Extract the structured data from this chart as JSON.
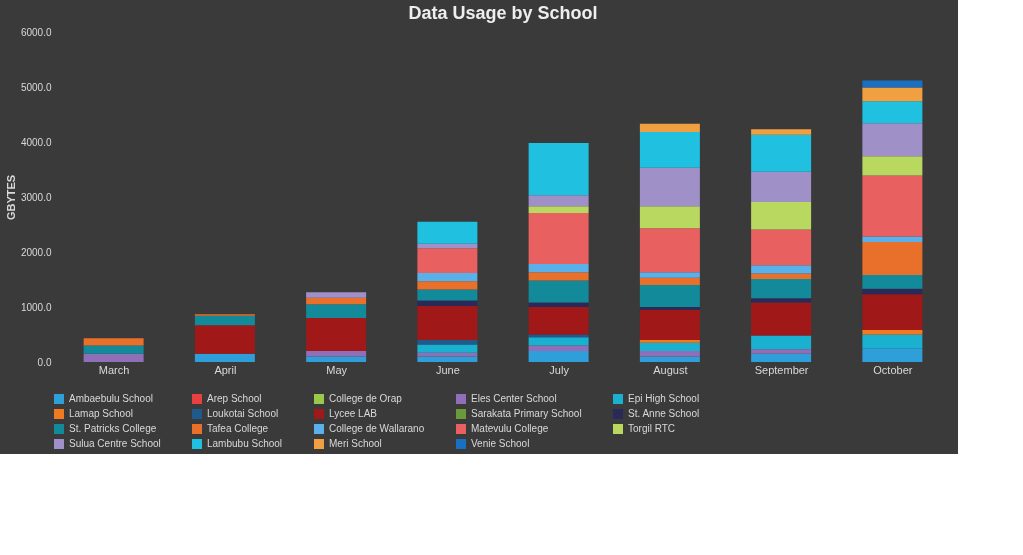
{
  "chart_data": {
    "type": "bar",
    "stacked": true,
    "title": "Data Usage by School",
    "ylabel": "GBYTES",
    "categories": [
      "March",
      "April",
      "May",
      "June",
      "July",
      "August",
      "September",
      "October"
    ],
    "ylim": [
      0,
      6000
    ],
    "yticks": [
      {
        "value": 0,
        "label": "0.0"
      },
      {
        "value": 1000,
        "label": "1000.0"
      },
      {
        "value": 2000,
        "label": "2000.0"
      },
      {
        "value": 3000,
        "label": "3000.0"
      },
      {
        "value": 4000,
        "label": "4000.0"
      },
      {
        "value": 5000,
        "label": "5000.0"
      },
      {
        "value": 6000,
        "label": "6000.0"
      }
    ],
    "grid": false,
    "legend": "bottom",
    "series": [
      {
        "name": "Ambaebulu School",
        "color": "#2e9fd8",
        "values": [
          0,
          150,
          100,
          100,
          200,
          100,
          150,
          250
        ]
      },
      {
        "name": "Arep School",
        "color": "#e84040",
        "values": [
          0,
          0,
          0,
          0,
          0,
          0,
          0,
          0
        ]
      },
      {
        "name": "College de Orap",
        "color": "#9bc84a",
        "values": [
          0,
          0,
          0,
          0,
          0,
          0,
          0,
          0
        ]
      },
      {
        "name": "Eles Center School",
        "color": "#8e6fb8",
        "values": [
          150,
          0,
          100,
          70,
          100,
          100,
          80,
          0
        ]
      },
      {
        "name": "Epi High School",
        "color": "#1ab0d0",
        "values": [
          0,
          0,
          0,
          150,
          150,
          150,
          250,
          250
        ]
      },
      {
        "name": "Lamap School",
        "color": "#f07a20",
        "values": [
          0,
          0,
          0,
          0,
          0,
          50,
          0,
          80
        ]
      },
      {
        "name": "Loukotai School",
        "color": "#1e5a8c",
        "values": [
          0,
          0,
          0,
          80,
          50,
          0,
          0,
          0
        ]
      },
      {
        "name": "Lycee LAB",
        "color": "#a01818",
        "values": [
          0,
          520,
          600,
          620,
          500,
          550,
          600,
          650
        ]
      },
      {
        "name": "Sarakata Primary School",
        "color": "#6a9a3a",
        "values": [
          0,
          0,
          0,
          0,
          0,
          0,
          0,
          0
        ]
      },
      {
        "name": "St. Anne School",
        "color": "#2a2a5a",
        "values": [
          0,
          0,
          0,
          100,
          80,
          50,
          80,
          100
        ]
      },
      {
        "name": "St. Patricks College",
        "color": "#138a9a",
        "values": [
          150,
          170,
          250,
          200,
          400,
          400,
          350,
          250
        ]
      },
      {
        "name": "Tafea College",
        "color": "#e8702a",
        "values": [
          130,
          30,
          120,
          150,
          150,
          130,
          100,
          600
        ]
      },
      {
        "name": "College de Wallarano",
        "color": "#5ab0e8",
        "values": [
          0,
          0,
          0,
          150,
          150,
          100,
          150,
          100
        ]
      },
      {
        "name": "Matevulu College",
        "color": "#e86060",
        "values": [
          0,
          0,
          0,
          450,
          930,
          800,
          650,
          1110
        ]
      },
      {
        "name": "Torgil RTC",
        "color": "#b8d860",
        "values": [
          0,
          0,
          0,
          0,
          120,
          400,
          500,
          350
        ]
      },
      {
        "name": "Sulua Centre School",
        "color": "#a090c8",
        "values": [
          0,
          0,
          100,
          80,
          200,
          700,
          550,
          600
        ]
      },
      {
        "name": "Lambubu School",
        "color": "#20c0e0",
        "values": [
          0,
          0,
          0,
          400,
          950,
          650,
          670,
          400
        ]
      },
      {
        "name": "Meri School",
        "color": "#f0a040",
        "values": [
          0,
          0,
          0,
          0,
          0,
          150,
          100,
          250
        ]
      },
      {
        "name": "Venie School",
        "color": "#1a70c0",
        "values": [
          0,
          0,
          0,
          0,
          0,
          0,
          0,
          130
        ]
      }
    ]
  }
}
